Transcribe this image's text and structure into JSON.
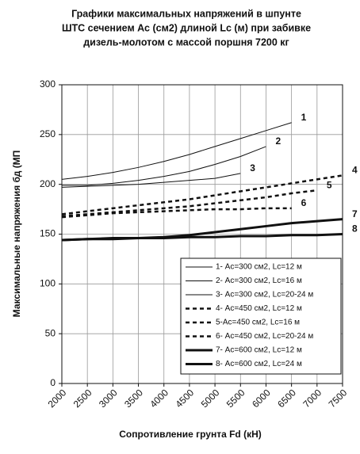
{
  "chart_data": {
    "type": "line",
    "title": [
      "Графики максимальных напряжений в шпунте",
      "ШТС сечением Ас (см2)  длиной Lc (м) при забивке",
      "дизель-молотом с массой поршня 7200 кг"
    ],
    "x_label": "Сопротивление грунта Fd (кН)",
    "y_label": "Максимальные напряжения бд  (МП",
    "x": [
      2000,
      2500,
      3000,
      3500,
      4000,
      4500,
      5000,
      5500,
      6000,
      6500,
      7000,
      7500
    ],
    "xlim": [
      2000,
      7500
    ],
    "xticks": [
      2000,
      2500,
      3000,
      3500,
      4000,
      4500,
      5000,
      5500,
      6000,
      6500,
      7000,
      7500
    ],
    "ylim": [
      0,
      300
    ],
    "yticks": [
      0,
      50,
      100,
      150,
      200,
      250,
      300
    ],
    "grid": true,
    "series": [
      {
        "name": "1- Ас=300 см2, Lc=12 м",
        "label": "1",
        "color": "#111",
        "width": 1,
        "dashed": false,
        "values": [
          205,
          208,
          212,
          217,
          223,
          230,
          238,
          246,
          254,
          262,
          null,
          null
        ]
      },
      {
        "name": "2- Ас=300 см2, Lc=16 м",
        "label": "2",
        "color": "#111",
        "width": 1,
        "dashed": false,
        "values": [
          199,
          199,
          201,
          204,
          208,
          213,
          220,
          228,
          238,
          null,
          null,
          null
        ]
      },
      {
        "name": "3- Ас=300 см2, Lc=20-24 м",
        "label": "3",
        "color": "#111",
        "width": 1,
        "dashed": false,
        "values": [
          197,
          198,
          199,
          200,
          202,
          204,
          206,
          211,
          null,
          null,
          null,
          null
        ]
      },
      {
        "name": "4- Ас=450 см2, Lc=12 м",
        "label": "4",
        "color": "#111",
        "width": 2.5,
        "dashed": true,
        "values": [
          170,
          173,
          176,
          179,
          182,
          185,
          189,
          193,
          197,
          201,
          205,
          209
        ]
      },
      {
        "name": "5-Ас=450 см2, Lc=16 м",
        "label": "5",
        "color": "#111",
        "width": 2.5,
        "dashed": true,
        "values": [
          168,
          170,
          172,
          174,
          176,
          178,
          181,
          184,
          187,
          191,
          194,
          null
        ]
      },
      {
        "name": "6- Ас=450 см2, Lc=20-24 м",
        "label": "6",
        "color": "#111",
        "width": 2.5,
        "dashed": true,
        "values": [
          167,
          169,
          171,
          172,
          173,
          174,
          175,
          175,
          176,
          176,
          null,
          null
        ]
      },
      {
        "name": "7- Ас=600 см2, Lc=12 м",
        "label": "7",
        "color": "#111",
        "width": 3,
        "dashed": false,
        "values": [
          144,
          145,
          146,
          146,
          147,
          149,
          152,
          155,
          158,
          161,
          163,
          165
        ]
      },
      {
        "name": "8- Ас=600 см2, Lc=24 м",
        "label": "8",
        "color": "#111",
        "width": 3,
        "dashed": false,
        "values": [
          144,
          145,
          145,
          146,
          146,
          147,
          147,
          148,
          148,
          149,
          149,
          150
        ]
      }
    ]
  }
}
